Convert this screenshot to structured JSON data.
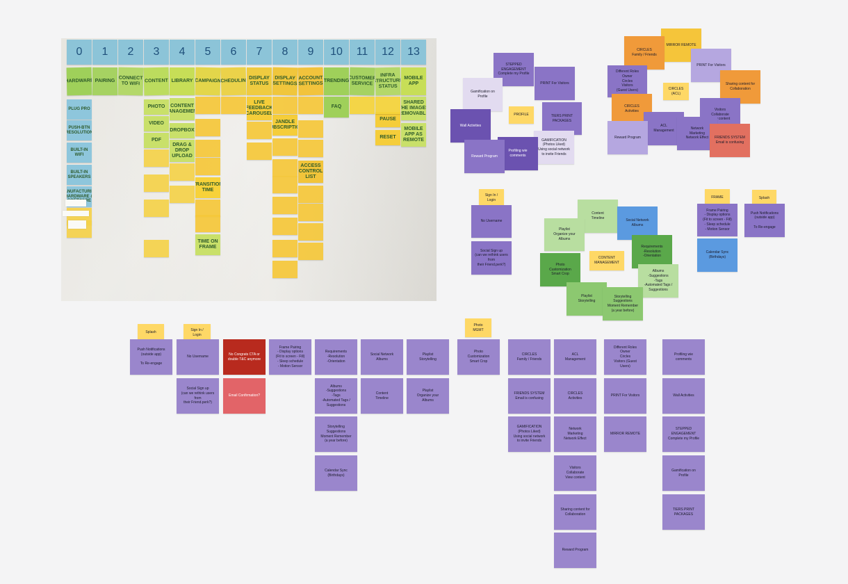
{
  "photo": {
    "column_numbers": [
      "0",
      "1",
      "2",
      "3",
      "4",
      "5",
      "6",
      "7",
      "8",
      "9",
      "10",
      "11",
      "12",
      "13"
    ],
    "headers": [
      "HARDWARE",
      "PAIRING",
      "CONNECT TO WIFI",
      "CONTENT",
      "LIBRARY",
      "CAMPAIGN",
      "SCHEDULING",
      "DISPLAY STATUS",
      "DISPLAY SETTINGS",
      "ACCOUNT SETTINGS",
      "TRENDING",
      "CUSTOMER SERVICE",
      "INFRA STRUCTURE STATUS",
      "MOBILE APP"
    ],
    "notes": [
      "PLUG PRO",
      "PUSH-BTN RESOLUTION",
      "BUILT-IN WIFI",
      "BUILT-IN SPEAKERS",
      "MANUFACTURING HARDWARE & SOFTWARE",
      "PHOTO",
      "VIDEO",
      "PDF",
      "CONTENT MANAGEMENT",
      "DROPBOX",
      "DRAG & DROP UPLOAD",
      "TIME ON FRAME",
      "TRANSITION TIME",
      "LIVE FEEDBACK CAROUSEL",
      "JANDLE SUBSCRIPTION",
      "ACCESS CONTROL LIST",
      "FAQ",
      "SHARED THE IMAGES REMOVABLE",
      "MOBILE APP AS REMOTE",
      "PAUSE",
      "RESET"
    ]
  },
  "cluster_engagement": [
    {
      "text": "STEPPED\nENGAGEMENT\nComplete my Profile",
      "color": "#8a74c6"
    },
    {
      "text": "PRINT For Visitors",
      "color": "#8a74c6"
    },
    {
      "text": "Gamification on\nProfile",
      "color": "#e2dbf0"
    },
    {
      "text": "PROFILE",
      "color": "#fed866"
    },
    {
      "text": "TIERS PRINT\nPACKAGES",
      "color": "#8a74c6"
    },
    {
      "text": "Wall Activities",
      "color": "#6b52b0"
    },
    {
      "text": "GAMIFICATION\n(Photos Liked)\nUsing social network\nto invite Friends",
      "color": "#e2dbf0"
    },
    {
      "text": "Profiling wie\ncomments",
      "color": "#6b52b0"
    },
    {
      "text": "Reward Program",
      "color": "#8a74c6"
    }
  ],
  "cluster_circles": [
    {
      "text": "MIRROR REMOTE",
      "color": "#f5c53a"
    },
    {
      "text": "CIRCLES\nFamily / Friends",
      "color": "#f09a3a"
    },
    {
      "text": "PRINT For Visitors",
      "color": "#b5a7e0"
    },
    {
      "text": "Different Roles\nOwner\nCircles\nVisitors\n(Guest Users)",
      "color": "#8a74c6"
    },
    {
      "text": "CIRCLES\n(ACL)",
      "color": "#fed866"
    },
    {
      "text": "Sharing content for\nCollaboration",
      "color": "#f09a3a"
    },
    {
      "text": "CIRCLES\nActivities",
      "color": "#f09a3a"
    },
    {
      "text": "Visitors\nCollaborate\nView content",
      "color": "#8a74c6"
    },
    {
      "text": "ACL\nManagement",
      "color": "#8a74c6"
    },
    {
      "text": "Network\nMarketing\nNetwork Effect",
      "color": "#8a74c6"
    },
    {
      "text": "FRIENDS SYSTEM\nEmail is confusing",
      "color": "#e27060"
    },
    {
      "text": "Reward Program",
      "color": "#b5a7e0"
    }
  ],
  "cluster_signin": [
    {
      "text": "Sign In /\nLogin",
      "color": "#fed866"
    },
    {
      "text": "No Username",
      "color": "#8a74c6"
    },
    {
      "text": "Social Sign up\n(can we rethink users from\ntheir Friend.perk?)",
      "color": "#8a74c6"
    }
  ],
  "cluster_content": [
    {
      "text": "Content\nTimeline",
      "color": "#b8dea0"
    },
    {
      "text": "Social Network\nAlbums",
      "color": "#5b9ae0"
    },
    {
      "text": "Playlist\nOrganize your\nAlbums",
      "color": "#b8dea0"
    },
    {
      "text": "Requirements\n-Resolution\n-Orientation",
      "color": "#5aa84a"
    },
    {
      "text": "CONTENT\nMANAGEMENT",
      "color": "#fed866"
    },
    {
      "text": "Photo\nCustomization\nSmart Crop",
      "color": "#5aa84a"
    },
    {
      "text": "Albums\n-Suggestions\n-Tags\n-Automated Tags /\nSuggestions",
      "color": "#b8dea0"
    },
    {
      "text": "Playlist\nStorytelling",
      "color": "#8cc870"
    },
    {
      "text": "Storytelling\nSuggestions\nMoment Remember\n(a year before)",
      "color": "#8cc870"
    }
  ],
  "cluster_frame": [
    {
      "text": "FRAME",
      "color": "#fed866"
    },
    {
      "text": "Splash",
      "color": "#fed866"
    },
    {
      "text": "Frame Pairing\n- Display options\n(Fit to screen - Fill)\n- Sleep schedule\n- Motion Sensor",
      "color": "#8a74c6"
    },
    {
      "text": "Push Notifications\n(outside app)\n\nTo Re-engage",
      "color": "#8a74c6"
    },
    {
      "text": "Calendar Sync\n(Birthdays)",
      "color": "#5b9ae0"
    }
  ],
  "bottom_headers": [
    {
      "text": "Splash",
      "color": "#fed866"
    },
    {
      "text": "Sign In /\nLogin",
      "color": "#fed866"
    },
    {
      "text": "Photo\nMGMT",
      "color": "#fed866"
    }
  ],
  "bottom_notes": [
    {
      "text": "Push Notifications\n(outside app)\n\nTo Re-engage",
      "color": "#9a86cc"
    },
    {
      "text": "No Username",
      "color": "#9a86cc"
    },
    {
      "text": "Social Sign up\n(can we rethink users from\ntheir Friend.perk?)",
      "color": "#9a86cc"
    },
    {
      "text": "No Congrats CTA or\ndouble T&C anymore",
      "color": "#b82a1e"
    },
    {
      "text": "Email Confirmation?",
      "color": "#e26468"
    },
    {
      "text": "Frame Pairing\n- Display options\n(Fit to screen - Fill)\n- Sleep schedule\n- Motion Sensor",
      "color": "#9a86cc"
    },
    {
      "text": "Requirements\n-Resolution\n-Orientation",
      "color": "#9a86cc"
    },
    {
      "text": "Albums\n-Suggestions\n-Tags\n-Automated Tags /\nSuggestions",
      "color": "#9a86cc"
    },
    {
      "text": "Storytelling\nSuggestions\nMoment Remember\n(a year before)",
      "color": "#9a86cc"
    },
    {
      "text": "Calendar Sync\n(Birthdays)",
      "color": "#9a86cc"
    },
    {
      "text": "Social Network\nAlbums",
      "color": "#9a86cc"
    },
    {
      "text": "Content\nTimeline",
      "color": "#9a86cc"
    },
    {
      "text": "Playlist\nStorytelling",
      "color": "#9a86cc"
    },
    {
      "text": "Playlist\nOrganize your\nAlbums",
      "color": "#9a86cc"
    },
    {
      "text": "Photo\nCustomization\nSmart Crop",
      "color": "#9a86cc"
    },
    {
      "text": "CIRCLES\nFamily / Friends",
      "color": "#9a86cc"
    },
    {
      "text": "FRIENDS SYSTEM\nEmail is confusing",
      "color": "#9a86cc"
    },
    {
      "text": "GAMIFICATION\n(Photos Liked)\nUsing social network\nto invite Friends",
      "color": "#9a86cc"
    },
    {
      "text": "ACL\nManagement",
      "color": "#9a86cc"
    },
    {
      "text": "CIRCLES\nActivities",
      "color": "#9a86cc"
    },
    {
      "text": "Network\nMarketing\nNetwork Effect",
      "color": "#9a86cc"
    },
    {
      "text": "Visitors\nCollaborate\nView content",
      "color": "#9a86cc"
    },
    {
      "text": "Sharing content for\nCollaboration",
      "color": "#9a86cc"
    },
    {
      "text": "Reward Program",
      "color": "#9a86cc"
    },
    {
      "text": "Different Roles\nOwner\nCircles\nVisitors (Guest\nUsers)",
      "color": "#9a86cc"
    },
    {
      "text": "PRINT For Visitors",
      "color": "#9a86cc"
    },
    {
      "text": "MIRROR REMOTE",
      "color": "#9a86cc"
    },
    {
      "text": "Profiling wie\ncomments",
      "color": "#9a86cc"
    },
    {
      "text": "Wall Activities",
      "color": "#9a86cc"
    },
    {
      "text": "STEPPED\nENGAGEMENT\nComplete my Profile",
      "color": "#9a86cc"
    },
    {
      "text": "Gamification on\nProfile",
      "color": "#9a86cc"
    },
    {
      "text": "TIERS PRINT\nPACKAGES",
      "color": "#9a86cc"
    }
  ]
}
